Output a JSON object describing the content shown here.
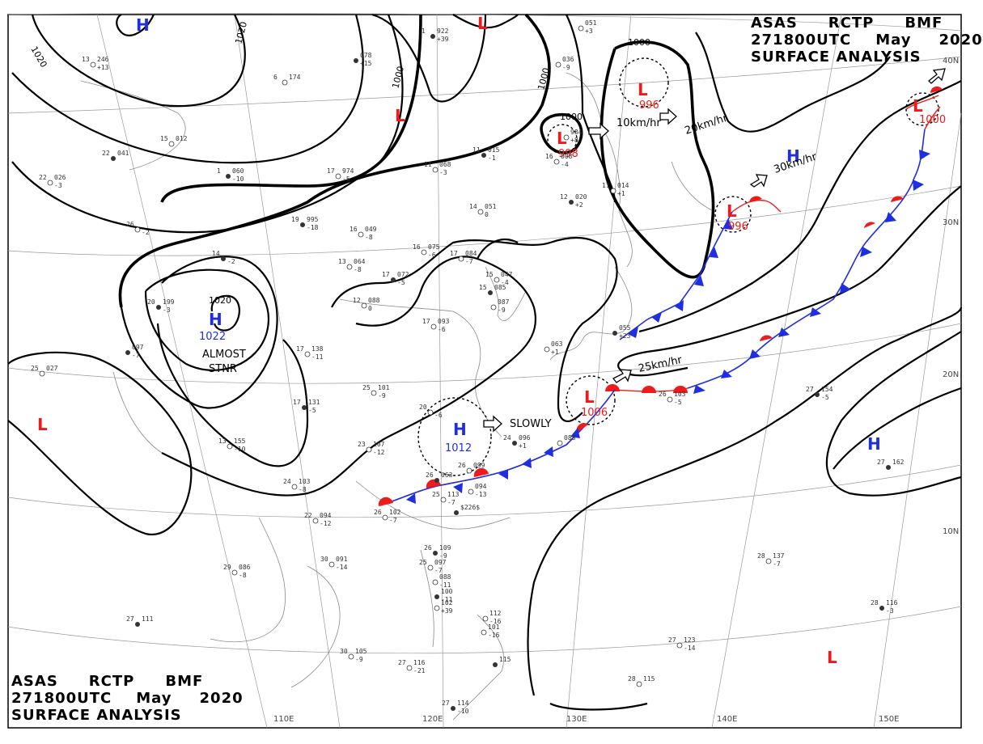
{
  "header_top": {
    "line1": [
      "ASAS",
      "RCTP",
      "BMF"
    ],
    "line2": [
      "271800UTC",
      "May",
      "2020"
    ],
    "line3": "SURFACE ANALYSIS"
  },
  "header_bottom": {
    "line1": [
      "ASAS",
      "RCTP",
      "BMF"
    ],
    "line2": [
      "271800UTC",
      "May",
      "2020"
    ],
    "line3": "SURFACE ANALYSIS"
  },
  "colors": {
    "high": "#1f2fe0",
    "low": "#ee1b1b",
    "cold_front": "#1f2fe0",
    "warm_front": "#ee1b1b",
    "isobar": "#000000"
  },
  "longitude_labels": [
    "110E",
    "120E",
    "130E",
    "140E",
    "150E"
  ],
  "latitude_labels": [
    "40N",
    "30N",
    "20N",
    "10N"
  ],
  "isobar_labels": [
    "1020",
    "1020",
    "1000",
    "1000",
    "1000",
    "1000",
    "1020"
  ],
  "pressure_systems": [
    {
      "type": "H",
      "pressure": "",
      "key": "h_nw"
    },
    {
      "type": "L",
      "pressure": "",
      "key": "l_top"
    },
    {
      "type": "L",
      "pressure": "",
      "key": "l_mongolia"
    },
    {
      "type": "L",
      "pressure": "998",
      "key": "l_manchuria"
    },
    {
      "type": "L",
      "pressure": "996",
      "key": "l_sea_okhotsk"
    },
    {
      "type": "L",
      "pressure": "996",
      "key": "l_japan_east"
    },
    {
      "type": "L",
      "pressure": "1000",
      "key": "l_ne"
    },
    {
      "type": "H",
      "pressure": "",
      "key": "h_pacific_n"
    },
    {
      "type": "H",
      "pressure": "1022",
      "key": "h_tibet"
    },
    {
      "type": "L",
      "pressure": "",
      "key": "l_india"
    },
    {
      "type": "H",
      "pressure": "1012",
      "key": "h_china"
    },
    {
      "type": "L",
      "pressure": "1006",
      "key": "l_taiwan"
    },
    {
      "type": "H",
      "pressure": "",
      "key": "h_pacific_s"
    },
    {
      "type": "L",
      "pressure": "",
      "key": "l_pacific_se"
    }
  ],
  "motion_labels": [
    "10km/hr",
    "20km/hr",
    "30km/hr",
    "25km/hr",
    "SLOWLY"
  ],
  "annotations": {
    "almost": "ALMOST",
    "stnr": "STNR"
  },
  "station_reports": [
    {
      "temp": "1",
      "press": "922",
      "tend": "+39"
    },
    {
      "temp": "13",
      "press": "246",
      "tend": "+13"
    },
    {
      "temp": "6",
      "press": "174",
      "tend": ""
    },
    {
      "temp": "",
      "press": "078",
      "tend": "+15"
    },
    {
      "temp": "",
      "press": "051",
      "tend": "+3"
    },
    {
      "temp": "",
      "press": "036",
      "tend": "-9"
    },
    {
      "temp": "22",
      "press": "041",
      "tend": ""
    },
    {
      "temp": "15",
      "press": "012",
      "tend": ""
    },
    {
      "temp": "22",
      "press": "026",
      "tend": "-3"
    },
    {
      "temp": "1",
      "press": "060",
      "tend": "-10"
    },
    {
      "temp": "17",
      "press": "974",
      "tend": "-5"
    },
    {
      "temp": "11",
      "press": "068",
      "tend": "-3"
    },
    {
      "temp": "11",
      "press": "015",
      "tend": "-1"
    },
    {
      "temp": "16",
      "press": "008",
      "tend": "-4"
    },
    {
      "temp": "",
      "press": "984",
      "tend": "+8"
    },
    {
      "temp": "19",
      "press": "995",
      "tend": "-18"
    },
    {
      "temp": "16",
      "press": "049",
      "tend": "-8"
    },
    {
      "temp": "14",
      "press": "051",
      "tend": "0"
    },
    {
      "temp": "12",
      "press": "020",
      "tend": "+2"
    },
    {
      "temp": "11",
      "press": "014",
      "tend": "+1"
    },
    {
      "temp": "26",
      "press": "",
      "tend": "-2"
    },
    {
      "temp": "14",
      "press": "",
      "tend": "-2"
    },
    {
      "temp": "13",
      "press": "064",
      "tend": "-8"
    },
    {
      "temp": "16",
      "press": "075",
      "tend": "-6"
    },
    {
      "temp": "17",
      "press": "072",
      "tend": "-5"
    },
    {
      "temp": "17",
      "press": "084",
      "tend": "-7"
    },
    {
      "temp": "15",
      "press": "047",
      "tend": "-4"
    },
    {
      "temp": "15",
      "press": "085",
      "tend": ""
    },
    {
      "temp": "",
      "press": "087",
      "tend": "-9"
    },
    {
      "temp": "12",
      "press": "088",
      "tend": "0"
    },
    {
      "temp": "20",
      "press": "199",
      "tend": "-3"
    },
    {
      "temp": "17",
      "press": "093",
      "tend": "-6"
    },
    {
      "temp": "17",
      "press": "138",
      "tend": "-11"
    },
    {
      "temp": "",
      "press": "055",
      "tend": "+23"
    },
    {
      "temp": "",
      "press": "063",
      "tend": "+1"
    },
    {
      "temp": "25",
      "press": "101",
      "tend": "-9"
    },
    {
      "temp": "17",
      "press": "131",
      "tend": "-5"
    },
    {
      "temp": "20",
      "press": "",
      "tend": "-6"
    },
    {
      "temp": "25",
      "press": "027",
      "tend": ""
    },
    {
      "temp": "",
      "press": "097",
      "tend": "-7"
    },
    {
      "temp": "13",
      "press": "155",
      "tend": "-10"
    },
    {
      "temp": "23",
      "press": "107",
      "tend": "-12"
    },
    {
      "temp": "24",
      "press": "096",
      "tend": "+1"
    },
    {
      "temp": "",
      "press": "088",
      "tend": ""
    },
    {
      "temp": "26",
      "press": "103",
      "tend": "-5"
    },
    {
      "temp": "27",
      "press": "154",
      "tend": "-5"
    },
    {
      "temp": "24",
      "press": "103",
      "tend": "-8"
    },
    {
      "temp": "26",
      "press": "099",
      "tend": ""
    },
    {
      "temp": "26",
      "press": "063",
      "tend": ""
    },
    {
      "temp": "",
      "press": "094",
      "tend": "-13"
    },
    {
      "temp": "25",
      "press": "113",
      "tend": "-7"
    },
    {
      "temp": "",
      "press": "$226$",
      "tend": ""
    },
    {
      "temp": "22",
      "press": "094",
      "tend": "-12"
    },
    {
      "temp": "26",
      "press": "102",
      "tend": "-7"
    },
    {
      "temp": "27",
      "press": "162",
      "tend": ""
    },
    {
      "temp": "29",
      "press": "086",
      "tend": "-8"
    },
    {
      "temp": "30",
      "press": "091",
      "tend": "-14"
    },
    {
      "temp": "26",
      "press": "109",
      "tend": "-9"
    },
    {
      "temp": "25",
      "press": "097",
      "tend": "-7"
    },
    {
      "temp": "",
      "press": "088",
      "tend": "-11"
    },
    {
      "temp": "",
      "press": "100",
      "tend": "-11"
    },
    {
      "temp": "",
      "press": "102",
      "tend": "+39"
    },
    {
      "temp": "28",
      "press": "137",
      "tend": "-7"
    },
    {
      "temp": "27",
      "press": "111",
      "tend": ""
    },
    {
      "temp": "",
      "press": "112",
      "tend": "-16"
    },
    {
      "temp": "",
      "press": "101",
      "tend": "-16"
    },
    {
      "temp": "28",
      "press": "116",
      "tend": "-3"
    },
    {
      "temp": "30",
      "press": "105",
      "tend": "-9"
    },
    {
      "temp": "27",
      "press": "116",
      "tend": "-21"
    },
    {
      "temp": "",
      "press": "115",
      "tend": ""
    },
    {
      "temp": "27",
      "press": "123",
      "tend": "-14"
    },
    {
      "temp": "28",
      "press": "115",
      "tend": ""
    },
    {
      "temp": "27",
      "press": "114",
      "tend": "-10"
    }
  ]
}
